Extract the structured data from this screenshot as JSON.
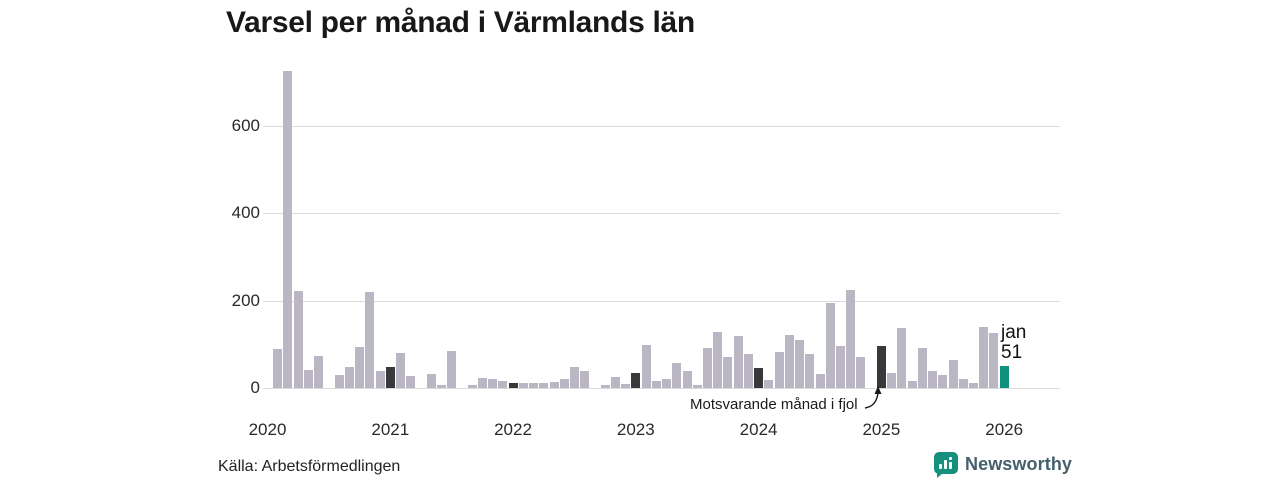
{
  "title": "Varsel per månad i Värmlands län",
  "source": "Källa: Arbetsförmedlingen",
  "branding": {
    "name": "Newsworthy",
    "icon": "newsworthy-bubble-chart-logo"
  },
  "annotation": {
    "text": "Motsvarande månad i fjol",
    "points_to": "2025-01"
  },
  "latest_label": {
    "month": "jan",
    "value": "51"
  },
  "colors": {
    "bar": "#bab6c4",
    "highlight_bar": "#39393b",
    "latest_bar": "#10917e",
    "grid": "#dcdcdc",
    "text": "#2a2a2a",
    "brand_teal": "#15907d",
    "brand_text": "#44606d"
  },
  "chart_data": {
    "type": "bar",
    "title": "Varsel per månad i Värmlands län",
    "xlabel": "",
    "ylabel": "",
    "ylim": [
      0,
      740
    ],
    "yticks": [
      0,
      200,
      400,
      600
    ],
    "year_ticks": [
      "2020",
      "2021",
      "2022",
      "2023",
      "2024",
      "2025",
      "2026"
    ],
    "legend": "none",
    "grid": "horizontal",
    "note": "styles: normal = gray month bar, fjol = dark bar (same month in earlier year, i.e. January), latest = teal current month",
    "series": [
      {
        "month": "2020-02",
        "value": 90,
        "style": "normal"
      },
      {
        "month": "2020-03",
        "value": 724,
        "style": "normal"
      },
      {
        "month": "2020-04",
        "value": 222,
        "style": "normal"
      },
      {
        "month": "2020-05",
        "value": 41,
        "style": "normal"
      },
      {
        "month": "2020-06",
        "value": 74,
        "style": "normal"
      },
      {
        "month": "2020-07",
        "value": 0,
        "style": "normal"
      },
      {
        "month": "2020-08",
        "value": 30,
        "style": "normal"
      },
      {
        "month": "2020-09",
        "value": 47,
        "style": "normal"
      },
      {
        "month": "2020-10",
        "value": 93,
        "style": "normal"
      },
      {
        "month": "2020-11",
        "value": 220,
        "style": "normal"
      },
      {
        "month": "2020-12",
        "value": 38,
        "style": "normal"
      },
      {
        "month": "2021-01",
        "value": 47,
        "style": "fjol"
      },
      {
        "month": "2021-02",
        "value": 81,
        "style": "normal"
      },
      {
        "month": "2021-03",
        "value": 28,
        "style": "normal"
      },
      {
        "month": "2021-04",
        "value": 0,
        "style": "normal"
      },
      {
        "month": "2021-05",
        "value": 33,
        "style": "normal"
      },
      {
        "month": "2021-06",
        "value": 8,
        "style": "normal"
      },
      {
        "month": "2021-07",
        "value": 84,
        "style": "normal"
      },
      {
        "month": "2021-08",
        "value": 0,
        "style": "normal"
      },
      {
        "month": "2021-09",
        "value": 6,
        "style": "normal"
      },
      {
        "month": "2021-10",
        "value": 22,
        "style": "normal"
      },
      {
        "month": "2021-11",
        "value": 20,
        "style": "normal"
      },
      {
        "month": "2021-12",
        "value": 16,
        "style": "normal"
      },
      {
        "month": "2022-01",
        "value": 12,
        "style": "fjol"
      },
      {
        "month": "2022-02",
        "value": 11,
        "style": "normal"
      },
      {
        "month": "2022-03",
        "value": 11,
        "style": "normal"
      },
      {
        "month": "2022-04",
        "value": 12,
        "style": "normal"
      },
      {
        "month": "2022-05",
        "value": 14,
        "style": "normal"
      },
      {
        "month": "2022-06",
        "value": 20,
        "style": "normal"
      },
      {
        "month": "2022-07",
        "value": 49,
        "style": "normal"
      },
      {
        "month": "2022-08",
        "value": 40,
        "style": "normal"
      },
      {
        "month": "2022-09",
        "value": 0,
        "style": "normal"
      },
      {
        "month": "2022-10",
        "value": 8,
        "style": "normal"
      },
      {
        "month": "2022-11",
        "value": 26,
        "style": "normal"
      },
      {
        "month": "2022-12",
        "value": 9,
        "style": "normal"
      },
      {
        "month": "2023-01",
        "value": 34,
        "style": "fjol"
      },
      {
        "month": "2023-02",
        "value": 99,
        "style": "normal"
      },
      {
        "month": "2023-03",
        "value": 15,
        "style": "normal"
      },
      {
        "month": "2023-04",
        "value": 21,
        "style": "normal"
      },
      {
        "month": "2023-05",
        "value": 57,
        "style": "normal"
      },
      {
        "month": "2023-06",
        "value": 38,
        "style": "normal"
      },
      {
        "month": "2023-07",
        "value": 6,
        "style": "normal"
      },
      {
        "month": "2023-08",
        "value": 91,
        "style": "normal"
      },
      {
        "month": "2023-09",
        "value": 127,
        "style": "normal"
      },
      {
        "month": "2023-10",
        "value": 72,
        "style": "normal"
      },
      {
        "month": "2023-11",
        "value": 120,
        "style": "normal"
      },
      {
        "month": "2023-12",
        "value": 78,
        "style": "normal"
      },
      {
        "month": "2024-01",
        "value": 45,
        "style": "fjol"
      },
      {
        "month": "2024-02",
        "value": 19,
        "style": "normal"
      },
      {
        "month": "2024-03",
        "value": 83,
        "style": "normal"
      },
      {
        "month": "2024-04",
        "value": 122,
        "style": "normal"
      },
      {
        "month": "2024-05",
        "value": 110,
        "style": "normal"
      },
      {
        "month": "2024-06",
        "value": 78,
        "style": "normal"
      },
      {
        "month": "2024-07",
        "value": 32,
        "style": "normal"
      },
      {
        "month": "2024-08",
        "value": 194,
        "style": "normal"
      },
      {
        "month": "2024-09",
        "value": 97,
        "style": "normal"
      },
      {
        "month": "2024-10",
        "value": 225,
        "style": "normal"
      },
      {
        "month": "2024-11",
        "value": 70,
        "style": "normal"
      },
      {
        "month": "2024-12",
        "value": 0,
        "style": "normal"
      },
      {
        "month": "2025-01",
        "value": 97,
        "style": "fjol"
      },
      {
        "month": "2025-02",
        "value": 35,
        "style": "normal"
      },
      {
        "month": "2025-03",
        "value": 137,
        "style": "normal"
      },
      {
        "month": "2025-04",
        "value": 17,
        "style": "normal"
      },
      {
        "month": "2025-05",
        "value": 91,
        "style": "normal"
      },
      {
        "month": "2025-06",
        "value": 40,
        "style": "normal"
      },
      {
        "month": "2025-07",
        "value": 30,
        "style": "normal"
      },
      {
        "month": "2025-08",
        "value": 64,
        "style": "normal"
      },
      {
        "month": "2025-09",
        "value": 20,
        "style": "normal"
      },
      {
        "month": "2025-10",
        "value": 12,
        "style": "normal"
      },
      {
        "month": "2025-11",
        "value": 139,
        "style": "normal"
      },
      {
        "month": "2025-12",
        "value": 126,
        "style": "normal"
      },
      {
        "month": "2026-01",
        "value": 51,
        "style": "latest"
      }
    ]
  }
}
